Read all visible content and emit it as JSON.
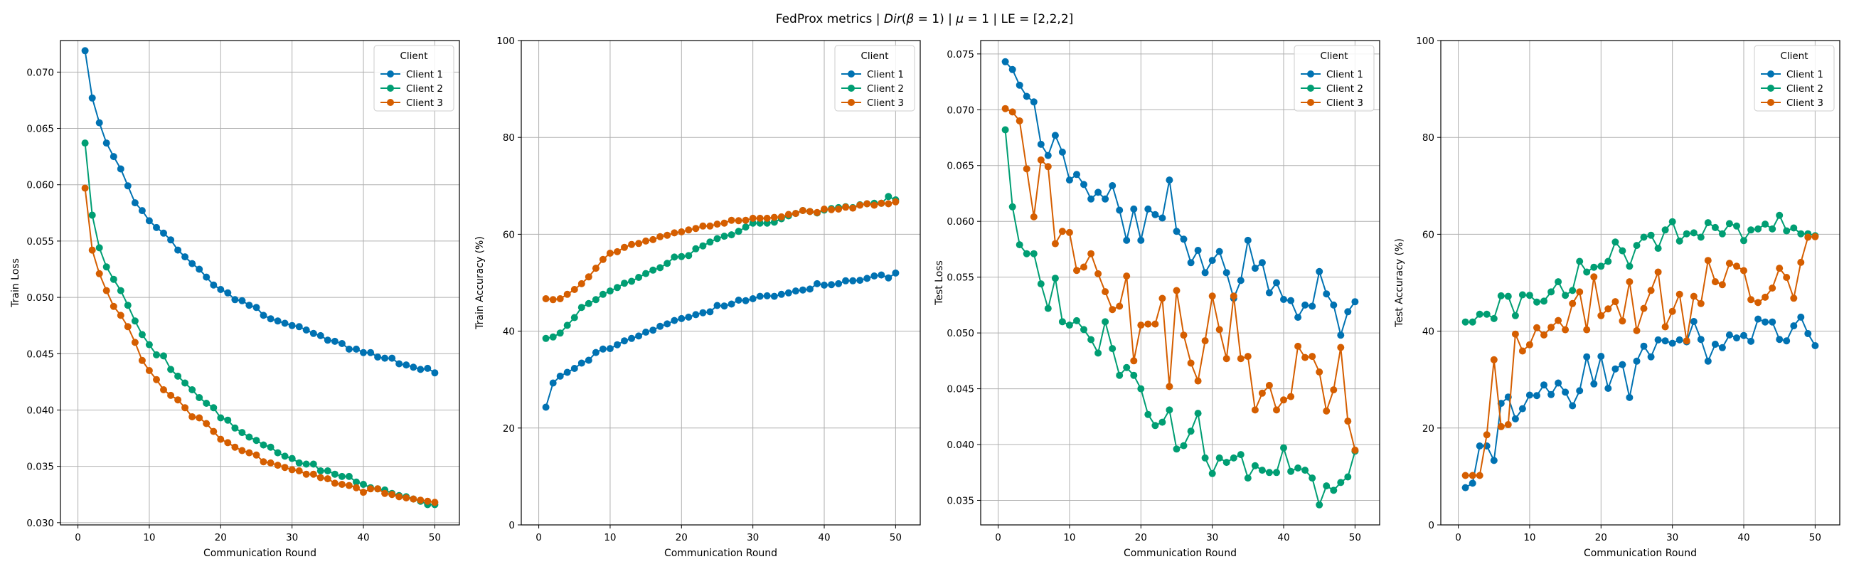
{
  "figure": {
    "suptitle_parts": [
      "FedProx metrics | ",
      "Dir",
      "(",
      "β",
      " = 1) | ",
      "μ",
      " = 1 | LE = [2,2,2]"
    ]
  },
  "legend": {
    "title": "Client",
    "entries": [
      "Client 1",
      "Client 2",
      "Client 3"
    ]
  },
  "colors": {
    "Client 1": "#0072b2",
    "Client 2": "#009e73",
    "Client 3": "#d55e00",
    "grid": "#b0b0b0"
  },
  "chart_data": [
    {
      "type": "line",
      "xlabel": "Communication Round",
      "ylabel": "Train Loss",
      "xlim": [
        -2.45,
        53.45
      ],
      "ylim": [
        0.0298,
        0.0728
      ],
      "xticks": [
        0,
        10,
        20,
        30,
        40,
        50
      ],
      "yticks": [
        0.03,
        0.035,
        0.04,
        0.045,
        0.05,
        0.055,
        0.06,
        0.065,
        0.07
      ],
      "ytick_labels": [
        "0.030",
        "0.035",
        "0.040",
        "0.045",
        "0.050",
        "0.055",
        "0.060",
        "0.065",
        "0.070"
      ],
      "grid": true,
      "legend_position": "top-right",
      "x_start": 1,
      "series": [
        {
          "name": "Client 1",
          "values": [
            0.0719,
            0.0677,
            0.0655,
            0.0637,
            0.0625,
            0.0614,
            0.0599,
            0.0584,
            0.0577,
            0.0568,
            0.0562,
            0.0557,
            0.0551,
            0.0542,
            0.0536,
            0.053,
            0.0525,
            0.0518,
            0.0511,
            0.0507,
            0.0504,
            0.0498,
            0.0497,
            0.0493,
            0.0491,
            0.0484,
            0.0481,
            0.0479,
            0.0477,
            0.0475,
            0.0474,
            0.0471,
            0.0468,
            0.0466,
            0.0462,
            0.0461,
            0.0459,
            0.0454,
            0.0454,
            0.0451,
            0.0451,
            0.0447,
            0.0446,
            0.0446,
            0.0441,
            0.044,
            0.0438,
            0.0436,
            0.0437,
            0.0433
          ]
        },
        {
          "name": "Client 2",
          "values": [
            0.0637,
            0.0573,
            0.0544,
            0.0527,
            0.0516,
            0.0506,
            0.0493,
            0.0479,
            0.0467,
            0.0458,
            0.0449,
            0.0448,
            0.0436,
            0.043,
            0.0424,
            0.0418,
            0.0411,
            0.0406,
            0.0402,
            0.0393,
            0.0391,
            0.0384,
            0.038,
            0.0376,
            0.0373,
            0.0369,
            0.0367,
            0.0362,
            0.0359,
            0.0357,
            0.0353,
            0.0352,
            0.0352,
            0.0346,
            0.0346,
            0.0343,
            0.0341,
            0.0341,
            0.0336,
            0.0334,
            0.0331,
            0.033,
            0.0329,
            0.0326,
            0.0324,
            0.0323,
            0.0321,
            0.0319,
            0.0316,
            0.0316
          ]
        },
        {
          "name": "Client 3",
          "values": [
            0.0597,
            0.0542,
            0.0521,
            0.0506,
            0.0492,
            0.0484,
            0.0474,
            0.046,
            0.0444,
            0.0435,
            0.0427,
            0.0418,
            0.0413,
            0.0409,
            0.0402,
            0.0394,
            0.0393,
            0.0388,
            0.0381,
            0.0374,
            0.0371,
            0.0367,
            0.0364,
            0.0362,
            0.036,
            0.0354,
            0.0353,
            0.0351,
            0.0349,
            0.0347,
            0.0346,
            0.0343,
            0.0343,
            0.034,
            0.0339,
            0.0335,
            0.0334,
            0.0333,
            0.0331,
            0.0327,
            0.033,
            0.033,
            0.0326,
            0.0325,
            0.0323,
            0.0322,
            0.0321,
            0.032,
            0.0319,
            0.0318
          ]
        }
      ]
    },
    {
      "type": "line",
      "xlabel": "Communication Round",
      "ylabel": "Train Accuracy (%)",
      "xlim": [
        -2.45,
        53.45
      ],
      "ylim": [
        0,
        100
      ],
      "xticks": [
        0,
        10,
        20,
        30,
        40,
        50
      ],
      "yticks": [
        0,
        20,
        40,
        60,
        80,
        100
      ],
      "ytick_labels": [
        "0",
        "20",
        "40",
        "60",
        "80",
        "100"
      ],
      "grid": true,
      "legend_position": "top-right",
      "x_start": 1,
      "series": [
        {
          "name": "Client 1",
          "values": [
            24.3,
            29.3,
            30.7,
            31.5,
            32.3,
            33.4,
            34.0,
            35.6,
            36.3,
            36.4,
            37.2,
            38.0,
            38.5,
            39.0,
            39.8,
            40.2,
            41.0,
            41.5,
            42.2,
            42.6,
            42.9,
            43.4,
            43.8,
            44.0,
            45.3,
            45.2,
            45.6,
            46.4,
            46.3,
            46.7,
            47.2,
            47.3,
            47.2,
            47.6,
            47.9,
            48.3,
            48.5,
            48.7,
            49.8,
            49.5,
            49.6,
            49.8,
            50.4,
            50.4,
            50.5,
            50.9,
            51.4,
            51.6,
            51.0,
            52.0
          ]
        },
        {
          "name": "Client 2",
          "values": [
            38.5,
            38.8,
            39.6,
            41.2,
            42.8,
            44.9,
            45.7,
            46.5,
            47.6,
            48.3,
            49.0,
            49.9,
            50.3,
            51.1,
            51.9,
            52.6,
            53.1,
            54.0,
            55.3,
            55.4,
            55.6,
            57.0,
            57.6,
            58.4,
            59.1,
            59.6,
            59.9,
            60.6,
            61.5,
            62.3,
            62.3,
            62.3,
            62.5,
            63.2,
            63.8,
            64.3,
            64.9,
            64.7,
            64.4,
            65.0,
            65.3,
            65.5,
            65.7,
            65.5,
            66.1,
            66.3,
            66.4,
            66.4,
            67.8,
            67.1
          ]
        },
        {
          "name": "Client 3",
          "values": [
            46.7,
            46.5,
            46.7,
            47.6,
            48.6,
            49.8,
            51.2,
            53.0,
            54.8,
            56.1,
            56.4,
            57.3,
            57.9,
            58.1,
            58.6,
            58.9,
            59.5,
            59.8,
            60.3,
            60.5,
            60.9,
            61.2,
            61.7,
            61.7,
            62.1,
            62.3,
            62.9,
            62.8,
            62.9,
            63.3,
            63.3,
            63.3,
            63.5,
            63.6,
            64.1,
            64.3,
            64.9,
            64.7,
            64.5,
            65.2,
            65.1,
            65.2,
            65.6,
            65.4,
            66.0,
            66.3,
            66.0,
            66.4,
            66.3,
            66.7
          ]
        }
      ]
    },
    {
      "type": "line",
      "xlabel": "Communication Round",
      "ylabel": "Test Loss",
      "xlim": [
        -2.45,
        53.45
      ],
      "ylim": [
        0.0328,
        0.0762
      ],
      "xticks": [
        0,
        10,
        20,
        30,
        40,
        50
      ],
      "yticks": [
        0.035,
        0.04,
        0.045,
        0.05,
        0.055,
        0.06,
        0.065,
        0.07,
        0.075
      ],
      "ytick_labels": [
        "0.035",
        "0.040",
        "0.045",
        "0.050",
        "0.055",
        "0.060",
        "0.065",
        "0.070",
        "0.075"
      ],
      "grid": true,
      "legend_position": "top-right",
      "x_start": 1,
      "series": [
        {
          "name": "Client 1",
          "values": [
            0.0743,
            0.0736,
            0.0722,
            0.0712,
            0.0707,
            0.0669,
            0.0659,
            0.0677,
            0.0662,
            0.0637,
            0.0642,
            0.0633,
            0.062,
            0.0626,
            0.062,
            0.0632,
            0.061,
            0.0583,
            0.0611,
            0.0583,
            0.0611,
            0.0606,
            0.0603,
            0.0637,
            0.0591,
            0.0584,
            0.0563,
            0.0574,
            0.0554,
            0.0565,
            0.0573,
            0.0554,
            0.0531,
            0.0547,
            0.0583,
            0.0558,
            0.0563,
            0.0536,
            0.0545,
            0.053,
            0.0529,
            0.0514,
            0.0525,
            0.0524,
            0.0555,
            0.0535,
            0.0525,
            0.0498,
            0.0519,
            0.0528
          ]
        },
        {
          "name": "Client 2",
          "values": [
            0.0682,
            0.0613,
            0.0579,
            0.0571,
            0.0571,
            0.0544,
            0.0522,
            0.0549,
            0.051,
            0.0507,
            0.0511,
            0.0503,
            0.0494,
            0.0482,
            0.051,
            0.0486,
            0.0462,
            0.0469,
            0.0462,
            0.045,
            0.0427,
            0.0417,
            0.042,
            0.0431,
            0.0396,
            0.0399,
            0.0412,
            0.0428,
            0.0388,
            0.0374,
            0.0388,
            0.0384,
            0.0388,
            0.0391,
            0.037,
            0.0381,
            0.0377,
            0.0375,
            0.0375,
            0.0397,
            0.0376,
            0.0379,
            0.0377,
            0.037,
            0.0346,
            0.0363,
            0.0359,
            0.0366,
            0.0371,
            0.0394
          ]
        },
        {
          "name": "Client 3",
          "values": [
            0.0701,
            0.0698,
            0.069,
            0.0647,
            0.0604,
            0.0655,
            0.0649,
            0.058,
            0.0591,
            0.059,
            0.0556,
            0.0559,
            0.0571,
            0.0553,
            0.0537,
            0.0521,
            0.0524,
            0.0551,
            0.0475,
            0.0507,
            0.0508,
            0.0508,
            0.0531,
            0.0452,
            0.0538,
            0.0498,
            0.0473,
            0.0457,
            0.0493,
            0.0533,
            0.0503,
            0.0477,
            0.0533,
            0.0477,
            0.0479,
            0.0431,
            0.0446,
            0.0453,
            0.0431,
            0.044,
            0.0443,
            0.0488,
            0.0478,
            0.0479,
            0.0465,
            0.043,
            0.0449,
            0.0487,
            0.0421,
            0.0395
          ]
        }
      ]
    },
    {
      "type": "line",
      "xlabel": "Communication Round",
      "ylabel": "Test Accuracy (%)",
      "xlim": [
        -2.45,
        53.45
      ],
      "ylim": [
        0,
        100
      ],
      "xticks": [
        0,
        10,
        20,
        30,
        40,
        50
      ],
      "yticks": [
        0,
        20,
        40,
        60,
        80,
        100
      ],
      "ytick_labels": [
        "0",
        "20",
        "40",
        "60",
        "80",
        "100"
      ],
      "grid": true,
      "legend_position": "top-right",
      "x_start": 1,
      "series": [
        {
          "name": "Client 1",
          "values": [
            7.7,
            8.6,
            16.3,
            16.3,
            13.3,
            25.1,
            26.4,
            21.9,
            24.0,
            26.8,
            26.7,
            28.9,
            26.9,
            29.3,
            27.4,
            24.6,
            27.7,
            34.7,
            29.1,
            34.8,
            28.2,
            32.2,
            33.1,
            26.3,
            33.8,
            36.9,
            34.7,
            38.2,
            38.0,
            37.5,
            38.2,
            37.8,
            42.0,
            38.3,
            33.8,
            37.3,
            36.6,
            39.2,
            38.6,
            39.1,
            37.9,
            42.5,
            41.9,
            41.9,
            38.3,
            38.0,
            41.1,
            42.9,
            39.5,
            37.0
          ]
        },
        {
          "name": "Client 2",
          "values": [
            41.9,
            41.9,
            43.5,
            43.5,
            42.6,
            47.3,
            47.2,
            43.2,
            47.5,
            47.4,
            46.0,
            46.2,
            48.1,
            50.2,
            47.4,
            48.4,
            54.4,
            52.2,
            53.2,
            53.4,
            54.4,
            58.4,
            56.6,
            53.4,
            57.7,
            59.4,
            59.8,
            57.1,
            60.9,
            62.6,
            58.6,
            60.1,
            60.3,
            59.4,
            62.4,
            61.4,
            60.1,
            62.2,
            61.7,
            58.7,
            60.9,
            61.1,
            62.1,
            61.1,
            63.9,
            60.7,
            61.3,
            60.1,
            60.1,
            59.7
          ]
        },
        {
          "name": "Client 3",
          "values": [
            10.2,
            10.2,
            10.2,
            18.6,
            34.1,
            20.3,
            20.7,
            39.4,
            35.9,
            37.2,
            40.7,
            39.2,
            40.8,
            42.2,
            40.3,
            45.7,
            48.1,
            40.3,
            51.2,
            43.2,
            44.6,
            46.1,
            42.1,
            50.2,
            40.1,
            44.7,
            48.4,
            52.2,
            40.9,
            44.1,
            47.6,
            38.0,
            47.2,
            45.7,
            54.6,
            50.2,
            49.6,
            54.0,
            53.4,
            52.5,
            46.5,
            45.9,
            47.0,
            48.9,
            53.0,
            51.1,
            46.8,
            54.2,
            59.4,
            59.5
          ]
        }
      ]
    }
  ]
}
